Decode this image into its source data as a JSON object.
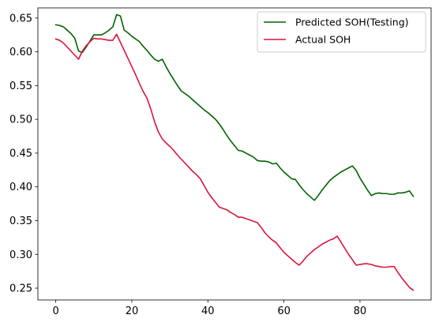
{
  "chart_data": {
    "type": "line",
    "xlim": [
      -4.7,
      98.7
    ],
    "ylim": [
      0.2325,
      0.665
    ],
    "x_ticks": [
      0,
      20,
      40,
      60,
      80
    ],
    "y_ticks": [
      0.25,
      0.3,
      0.35,
      0.4,
      0.45,
      0.5,
      0.55,
      0.6,
      0.65
    ],
    "grid": false,
    "legend_placement": "top-right",
    "series": [
      {
        "name": "Predicted SOH(Testing)",
        "color": "#006400",
        "x": [
          0,
          1,
          2,
          3,
          4,
          5,
          6,
          7,
          8,
          9,
          10,
          11,
          12,
          13,
          14,
          15,
          16,
          17,
          18,
          19,
          20,
          21,
          22,
          23,
          24,
          25,
          26,
          27,
          28,
          29,
          30,
          31,
          32,
          33,
          34,
          35,
          36,
          37,
          38,
          39,
          40,
          41,
          42,
          43,
          44,
          45,
          46,
          47,
          48,
          49,
          50,
          51,
          52,
          53,
          54,
          55,
          56,
          57,
          58,
          59,
          60,
          61,
          62,
          63,
          64,
          65,
          66,
          67,
          68,
          69,
          70,
          71,
          72,
          73,
          74,
          75,
          76,
          77,
          78,
          79,
          80,
          81,
          82,
          83,
          84,
          85,
          86,
          87,
          88,
          89,
          90,
          91,
          92,
          93,
          94
        ],
        "y": [
          0.64,
          0.639,
          0.637,
          0.632,
          0.627,
          0.62,
          0.601,
          0.599,
          0.607,
          0.616,
          0.625,
          0.625,
          0.625,
          0.628,
          0.632,
          0.637,
          0.655,
          0.653,
          0.632,
          0.628,
          0.623,
          0.619,
          0.615,
          0.608,
          0.602,
          0.595,
          0.589,
          0.586,
          0.589,
          0.578,
          0.568,
          0.559,
          0.55,
          0.542,
          0.538,
          0.534,
          0.529,
          0.524,
          0.519,
          0.514,
          0.51,
          0.505,
          0.5,
          0.493,
          0.485,
          0.476,
          0.468,
          0.461,
          0.454,
          0.453,
          0.45,
          0.447,
          0.444,
          0.439,
          0.438,
          0.438,
          0.437,
          0.434,
          0.435,
          0.428,
          0.422,
          0.417,
          0.412,
          0.411,
          0.403,
          0.396,
          0.39,
          0.385,
          0.38,
          0.387,
          0.395,
          0.402,
          0.409,
          0.414,
          0.418,
          0.422,
          0.425,
          0.428,
          0.431,
          0.424,
          0.413,
          0.404,
          0.395,
          0.387,
          0.39,
          0.391,
          0.39,
          0.39,
          0.389,
          0.389,
          0.391,
          0.391,
          0.392,
          0.394,
          0.386
        ]
      },
      {
        "name": "Actual SOH",
        "color": "#dc143c",
        "x": [
          0,
          1,
          2,
          3,
          4,
          5,
          6,
          7,
          8,
          9,
          10,
          11,
          12,
          13,
          14,
          15,
          16,
          17,
          18,
          19,
          20,
          21,
          22,
          23,
          24,
          25,
          26,
          27,
          28,
          29,
          30,
          31,
          32,
          33,
          34,
          35,
          36,
          37,
          38,
          39,
          40,
          41,
          42,
          43,
          44,
          45,
          46,
          47,
          48,
          49,
          50,
          51,
          52,
          53,
          54,
          55,
          56,
          57,
          58,
          59,
          60,
          61,
          62,
          63,
          64,
          65,
          66,
          67,
          68,
          69,
          70,
          71,
          72,
          73,
          74,
          75,
          76,
          77,
          78,
          79,
          80,
          81,
          82,
          83,
          84,
          85,
          86,
          87,
          88,
          89,
          90,
          91,
          92,
          93,
          94
        ],
        "y": [
          0.619,
          0.617,
          0.613,
          0.607,
          0.601,
          0.595,
          0.589,
          0.601,
          0.609,
          0.615,
          0.62,
          0.619,
          0.619,
          0.618,
          0.617,
          0.617,
          0.626,
          0.614,
          0.602,
          0.59,
          0.578,
          0.566,
          0.553,
          0.541,
          0.531,
          0.515,
          0.496,
          0.481,
          0.471,
          0.465,
          0.46,
          0.454,
          0.447,
          0.441,
          0.435,
          0.429,
          0.423,
          0.418,
          0.412,
          0.402,
          0.392,
          0.384,
          0.377,
          0.37,
          0.368,
          0.366,
          0.362,
          0.359,
          0.355,
          0.355,
          0.353,
          0.351,
          0.349,
          0.347,
          0.34,
          0.332,
          0.326,
          0.321,
          0.317,
          0.31,
          0.303,
          0.298,
          0.293,
          0.288,
          0.284,
          0.29,
          0.297,
          0.302,
          0.307,
          0.311,
          0.315,
          0.318,
          0.321,
          0.323,
          0.327,
          0.318,
          0.309,
          0.3,
          0.292,
          0.284,
          0.285,
          0.286,
          0.286,
          0.285,
          0.283,
          0.282,
          0.281,
          0.281,
          0.282,
          0.282,
          0.273,
          0.265,
          0.258,
          0.251,
          0.247
        ]
      }
    ]
  }
}
